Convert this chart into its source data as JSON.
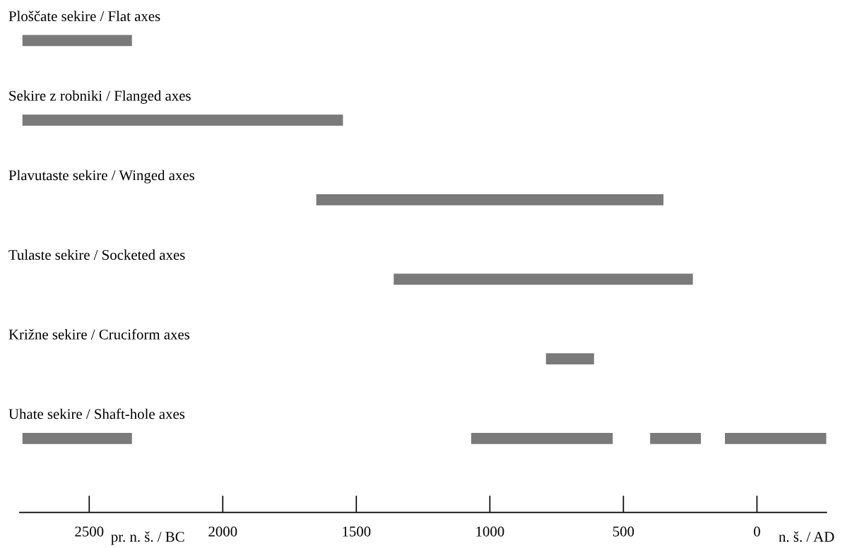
{
  "chart_data": {
    "type": "bar",
    "orientation": "horizontal",
    "categories": [
      "Ploščate sekire / Flat axes",
      "Sekire z robniki / Flanged axes",
      "Plavutaste sekire / Winged axes",
      "Tulaste sekire / Socketed axes",
      "Križne sekire / Cruciform axes",
      "Uhate sekire / Shaft-hole axes"
    ],
    "series": [
      {
        "color": "#7a7a7a",
        "base": [
          -2750,
          -2750,
          -1650,
          -1360,
          -790,
          -2750
        ],
        "values": [
          410,
          1200,
          1300,
          1120,
          180,
          410
        ]
      },
      {
        "color": "#7a7a7a",
        "base": [
          null,
          null,
          null,
          null,
          null,
          -1070
        ],
        "values": [
          null,
          null,
          null,
          null,
          null,
          530
        ]
      },
      {
        "color": "#7a7a7a",
        "base": [
          null,
          null,
          null,
          null,
          null,
          -400
        ],
        "values": [
          null,
          null,
          null,
          null,
          null,
          190
        ]
      },
      {
        "color": "#7a7a7a",
        "base": [
          null,
          null,
          null,
          null,
          null,
          -120
        ],
        "values": [
          null,
          null,
          null,
          null,
          null,
          380
        ]
      }
    ],
    "xlim": [
      -2760,
      260
    ],
    "xticks": [
      {
        "value": -2500,
        "label": "2500"
      },
      {
        "value": -2000,
        "label": "2000"
      },
      {
        "value": -1500,
        "label": "1500"
      },
      {
        "value": -1000,
        "label": "1000"
      },
      {
        "value": -500,
        "label": "500"
      },
      {
        "value": 0,
        "label": "0"
      }
    ],
    "annotations": [
      "pr. n. š. / BC",
      "n. š. / AD"
    ],
    "tick_labels": "x",
    "grid": false,
    "legend": false
  }
}
